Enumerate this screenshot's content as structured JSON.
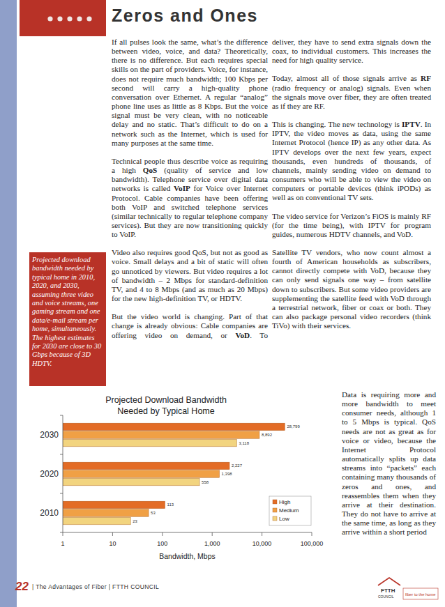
{
  "header": {
    "title": "Zeros and Ones"
  },
  "columns": [
    {
      "paragraphs": [
        [
          {
            "text": "If all pulses look the same, what’s the difference between video, voice, and data? Theoretically, there is no difference. But each requires special skills on the part of providers. Voice, for instance, does not require much bandwidth; 100 Kbps per second will carry a high-quality phone conversation over Ethernet. A regular “analog” phone line uses as little as 8 Kbps. But the voice signal must be very clean, with no noticeable delay and no static. That’s difficult to do on a network such as the Internet, which is used for many purposes at the same time."
          }
        ],
        [
          {
            "text": "Technical people thus describe voice as requiring a high "
          },
          {
            "text": "QoS",
            "bold": true
          },
          {
            "text": " (quality of service and low bandwidth). Telephone service over digital data networks is called "
          },
          {
            "text": "VoIP",
            "bold": true
          },
          {
            "text": " for Voice over Internet Protocol. Cable companies have been offering both VoIP and switched telephone services (similar technically to regular telephone company services). But they are now transitioning quickly to VoIP."
          }
        ],
        [
          {
            "text": "Video also requires good QoS, but not as good as voice. Small delays and a bit of static will often go unnoticed by viewers. But video requires a lot of bandwidth – 2 Mbps for standard-definition TV, and 4 to 8 Mbps (and as much as 20 Mbps) for the new high-definition TV, or HDTV."
          }
        ],
        [
          {
            "text": "But the video world is changing. Part of that change is already obvious: Cable companies are offering video on demand, or "
          },
          {
            "text": "VoD",
            "bold": true
          },
          {
            "text": ". To"
          }
        ]
      ]
    },
    {
      "paragraphs": [
        [
          {
            "text": "deliver, they have to send extra signals down the coax, to individual customers. This increases the need for high quality service."
          }
        ],
        [
          {
            "text": "Today, almost all of those signals arrive as "
          },
          {
            "text": "RF",
            "bold": true
          },
          {
            "text": " (radio frequency or analog) signals. Even when the signals move over fiber, they are often treated as if they are RF."
          }
        ],
        [
          {
            "text": "This is changing. The new technology is "
          },
          {
            "text": "IPTV",
            "bold": true
          },
          {
            "text": ". In IPTV, the video moves as data, using the same Internet Protocol (hence IP) as any other data. As IPTV develops over the next few years, expect thousands, even hundreds of thousands, of channels, mainly sending video on demand to consumers who will be able to view the video on computers or portable devices (think iPODs) as well as on conventional TV sets."
          }
        ],
        [
          {
            "text": "The video service for Verizon’s FiOS is mainly RF (for the time being), with IPTV for program guides, numerous HDTV channels, and VoD."
          }
        ],
        [
          {
            "text": "Satellite TV vendors, who now count almost a fourth of American households as subscribers, cannot directly compete with VoD, because they can only send signals one way – from satellite down to subscribers. But some video providers are supplementing the satellite feed with VoD through a terrestrial network, fiber or coax or both. They can also package personal video recorders (think TiVo) with their services."
          }
        ]
      ]
    },
    {
      "paragraphs": [
        [
          {
            "text": "Data is requiring more and more bandwidth to meet consumer needs, although 1 to 5 Mbps is typical. QoS needs are not as great as for voice or video, because the Internet Protocol automatically splits up data streams into “packets” each containing many thousands of zeros and ones, and reassembles them when they arrive at their destination. They do not have to arrive at the same time, as long as they arrive within a short period"
          }
        ]
      ]
    }
  ],
  "caption": "Projected download bandwidth needed by typical home in 2010, 2020, and 2030, assuming three video and voice streams, one gaming stream and one data/e-mail stream per home, simultaneously. The highest estimates for 2030 are close to 30 Gbps because of 3D HDTV.",
  "chart_data": {
    "type": "bar",
    "orientation": "horizontal",
    "title": "Projected Download Bandwidth Needed by Typical Home",
    "x_label": "Bandwidth, Mbps",
    "categories": [
      "2010",
      "2020",
      "2030"
    ],
    "series": [
      {
        "name": "High",
        "color": "#e36c26",
        "values": [
          113,
          2227,
          28799
        ],
        "value_labels": [
          "113",
          "2,227",
          "28,799"
        ]
      },
      {
        "name": "Medium",
        "color": "#f0a045",
        "values": [
          53,
          1398,
          8892
        ],
        "value_labels": [
          "53",
          "1,398",
          "8,892"
        ]
      },
      {
        "name": "Low",
        "color": "#f2d47f",
        "values": [
          23,
          558,
          3118
        ],
        "value_labels": [
          "23",
          "558",
          "3,118"
        ]
      }
    ],
    "log": "x",
    "xlim": [
      1,
      100000
    ],
    "xticks": [
      1,
      10,
      100,
      {
        "value": 1000,
        "label": "1,000"
      },
      {
        "value": 10000,
        "label": "10,000"
      },
      {
        "value": 100000,
        "label": "100,000"
      }
    ],
    "grid": false,
    "legend": "lower right",
    "data_labels": true
  },
  "footer": {
    "page": "22",
    "text": "| The Advantages of Fiber | FTTH COUNCIL"
  },
  "logo": {
    "name": "FTTH",
    "sub": "COUNCIL",
    "tagline": "fiber to the home"
  }
}
